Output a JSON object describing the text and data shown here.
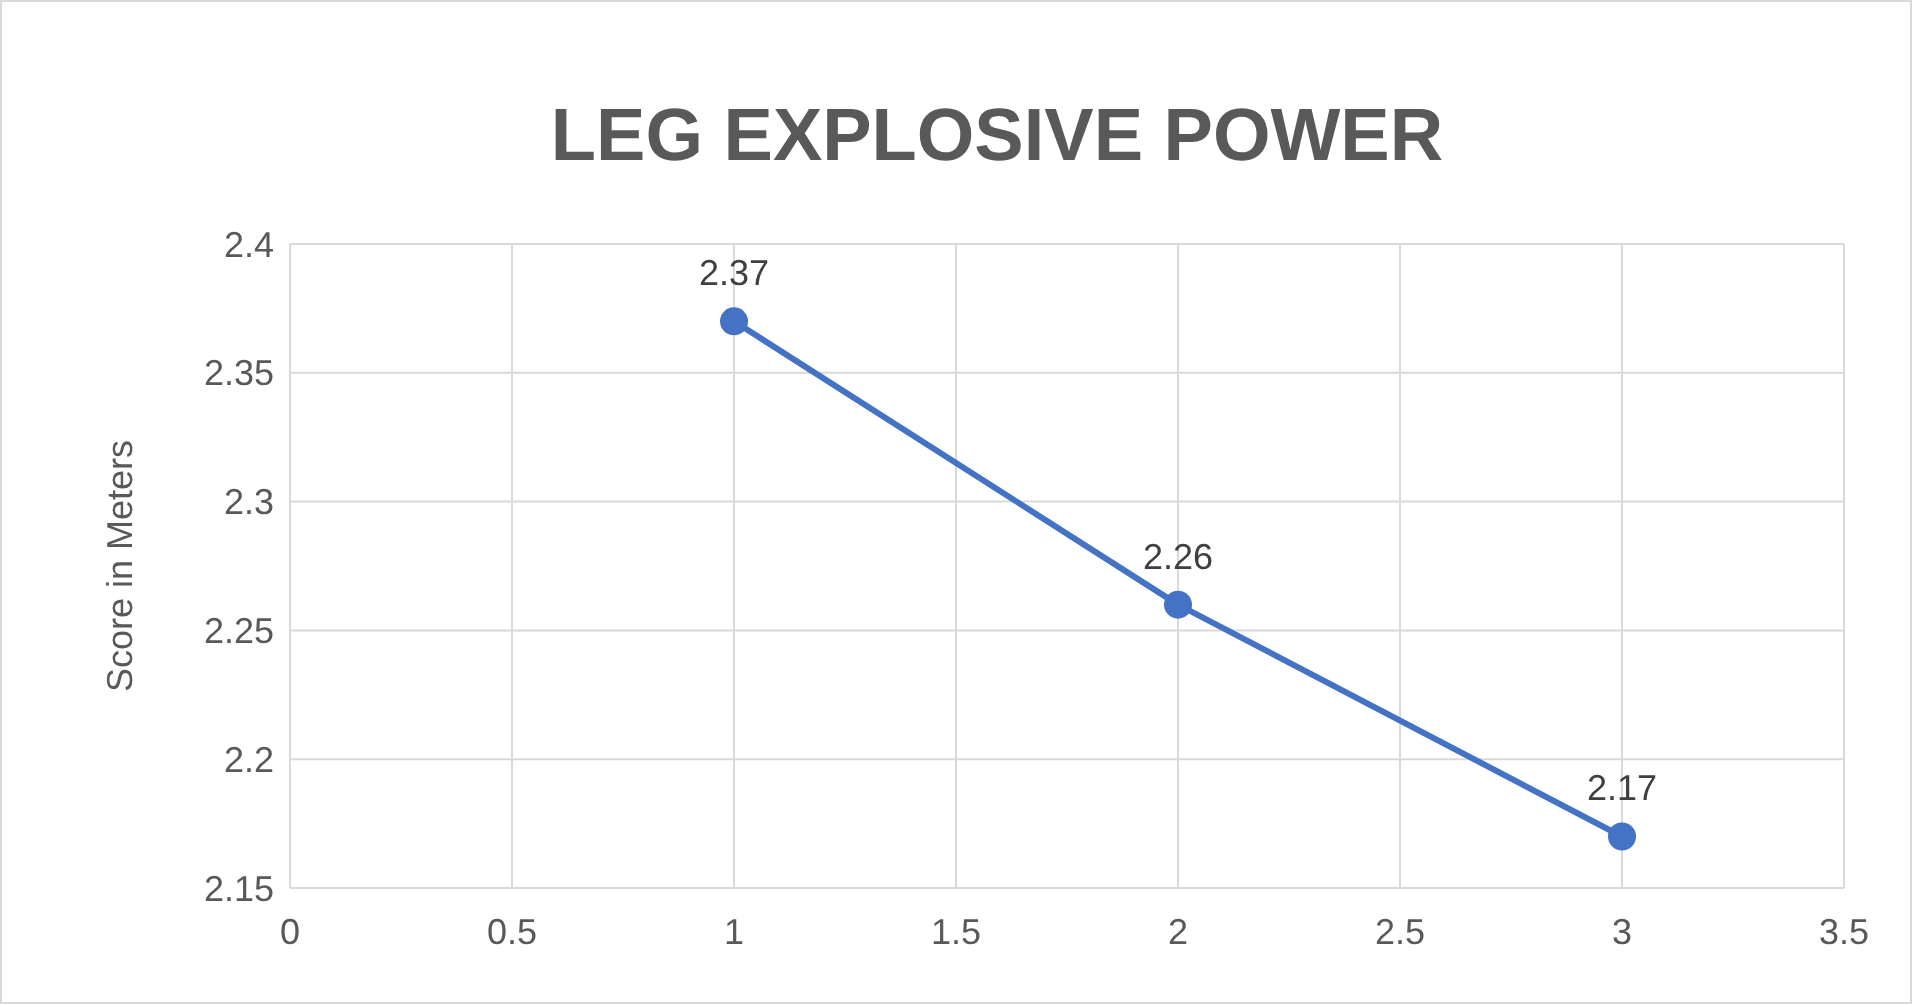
{
  "chart_data": {
    "type": "line",
    "title": "LEG EXPLOSIVE POWER",
    "ylabel": "Score in Meters",
    "x": [
      1,
      2,
      3
    ],
    "series": [
      {
        "color": "#4472c4",
        "values": [
          2.37,
          2.26,
          2.17
        ]
      }
    ],
    "xlim": [
      0,
      3.5
    ],
    "xticks": [
      0,
      0.5,
      1,
      1.5,
      2,
      2.5,
      3,
      3.5
    ],
    "ylim": [
      2.15,
      2.4
    ],
    "yticks": [
      2.15,
      2.2,
      2.25,
      2.3,
      2.35,
      2.4
    ],
    "grid": true,
    "marker": "circle",
    "line_style": "solid",
    "data_labels": true
  }
}
